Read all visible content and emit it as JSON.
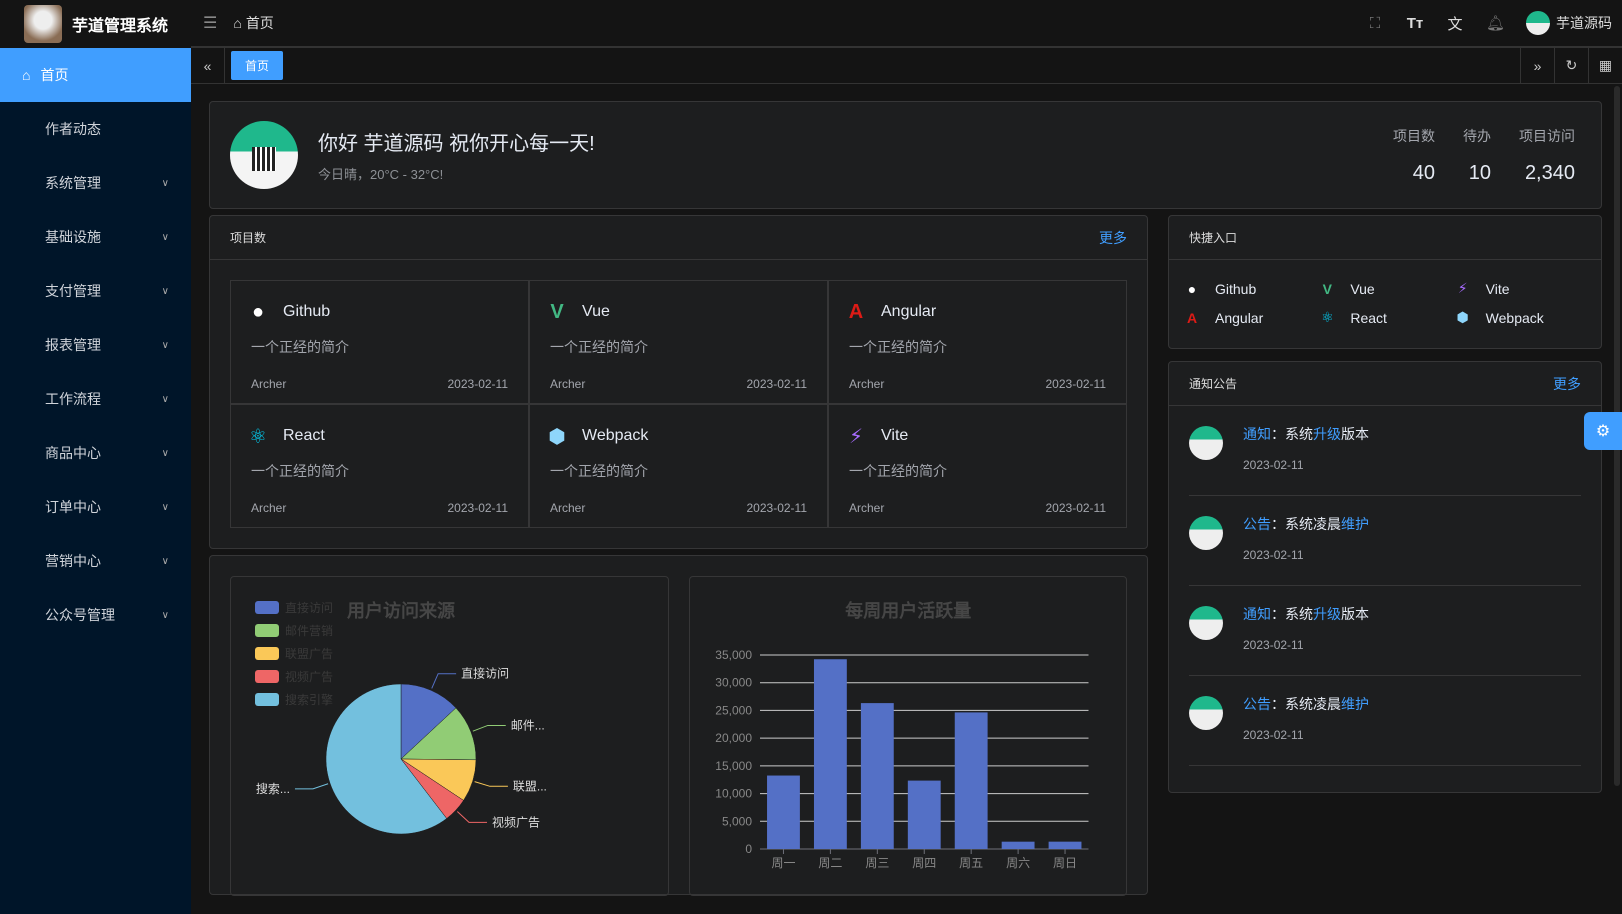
{
  "app": {
    "title": "芋道管理系统"
  },
  "sidebar": {
    "items": [
      {
        "label": "首页",
        "active": true
      },
      {
        "label": "作者动态"
      },
      {
        "label": "系统管理"
      },
      {
        "label": "基础设施"
      },
      {
        "label": "支付管理"
      },
      {
        "label": "报表管理"
      },
      {
        "label": "工作流程"
      },
      {
        "label": "商品中心"
      },
      {
        "label": "订单中心"
      },
      {
        "label": "营销中心"
      },
      {
        "label": "公众号管理"
      }
    ]
  },
  "header": {
    "breadcrumb": "首页",
    "user": "芋道源码"
  },
  "tabs": {
    "active": "首页"
  },
  "welcome": {
    "greeting": "你好 芋道源码 祝你开心每一天!",
    "weather": "今日晴，20°C - 32°C!",
    "stats": [
      {
        "label": "项目数",
        "value": "40"
      },
      {
        "label": "待办",
        "value": "10"
      },
      {
        "label": "项目访问",
        "value": "2,340"
      }
    ]
  },
  "projects": {
    "title": "项目数",
    "more": "更多",
    "items": [
      {
        "name": "Github",
        "desc": "一个正经的简介",
        "author": "Archer",
        "date": "2023-02-11",
        "icon": "github",
        "color": "#ffffff"
      },
      {
        "name": "Vue",
        "desc": "一个正经的简介",
        "author": "Archer",
        "date": "2023-02-11",
        "icon": "vue",
        "color": "#42b883"
      },
      {
        "name": "Angular",
        "desc": "一个正经的简介",
        "author": "Archer",
        "date": "2023-02-11",
        "icon": "angular",
        "color": "#dd1b16"
      },
      {
        "name": "React",
        "desc": "一个正经的简介",
        "author": "Archer",
        "date": "2023-02-11",
        "icon": "react",
        "color": "#00d8ff"
      },
      {
        "name": "Webpack",
        "desc": "一个正经的简介",
        "author": "Archer",
        "date": "2023-02-11",
        "icon": "webpack",
        "color": "#8ed6fb"
      },
      {
        "name": "Vite",
        "desc": "一个正经的简介",
        "author": "Archer",
        "date": "2023-02-11",
        "icon": "vite",
        "color": "#a86cff"
      }
    ]
  },
  "quick": {
    "title": "快捷入口",
    "items": [
      {
        "name": "Github",
        "icon": "github",
        "color": "#ffffff"
      },
      {
        "name": "Vue",
        "icon": "vue",
        "color": "#42b883"
      },
      {
        "name": "Vite",
        "icon": "vite",
        "color": "#a86cff"
      },
      {
        "name": "Angular",
        "icon": "angular",
        "color": "#dd1b16"
      },
      {
        "name": "React",
        "icon": "react",
        "color": "#00d8ff"
      },
      {
        "name": "Webpack",
        "icon": "webpack",
        "color": "#8ed6fb"
      }
    ]
  },
  "notice": {
    "title": "通知公告",
    "more": "更多",
    "items": [
      {
        "type": "通知",
        "sep": "：",
        "a": "系统",
        "b": "升级",
        "c": "版本",
        "date": "2023-02-11"
      },
      {
        "type": "公告",
        "sep": "：",
        "a": "系统凌晨",
        "b": "维护",
        "c": "",
        "date": "2023-02-11"
      },
      {
        "type": "通知",
        "sep": "：",
        "a": "系统",
        "b": "升级",
        "c": "版本",
        "date": "2023-02-11"
      },
      {
        "type": "公告",
        "sep": "：",
        "a": "系统凌晨",
        "b": "维护",
        "c": "",
        "date": "2023-02-11"
      }
    ]
  },
  "chart_data": [
    {
      "type": "pie",
      "title": "用户访问来源",
      "legend_position": "top-left",
      "categories": [
        "直接访问",
        "邮件营销",
        "联盟广告",
        "视频广告",
        "搜索引擎"
      ],
      "labels": [
        "直接访问",
        "邮件...",
        "联盟...",
        "视频广告",
        "搜索..."
      ],
      "values": [
        335,
        310,
        234,
        135,
        1548
      ],
      "colors": [
        "#5470c6",
        "#91cc75",
        "#fac858",
        "#ee6666",
        "#73c0de"
      ]
    },
    {
      "type": "bar",
      "title": "每周用户活跃量",
      "categories": [
        "周一",
        "周二",
        "周三",
        "周四",
        "周五",
        "周六",
        "周日"
      ],
      "values": [
        13253,
        34235,
        26321,
        12340,
        24643,
        1322,
        1324
      ],
      "ylim": [
        0,
        35000
      ],
      "yticks": [
        "0",
        "5,000",
        "10,000",
        "15,000",
        "20,000",
        "25,000",
        "30,000",
        "35,000"
      ],
      "grid": true,
      "color": "#5470c6"
    }
  ]
}
